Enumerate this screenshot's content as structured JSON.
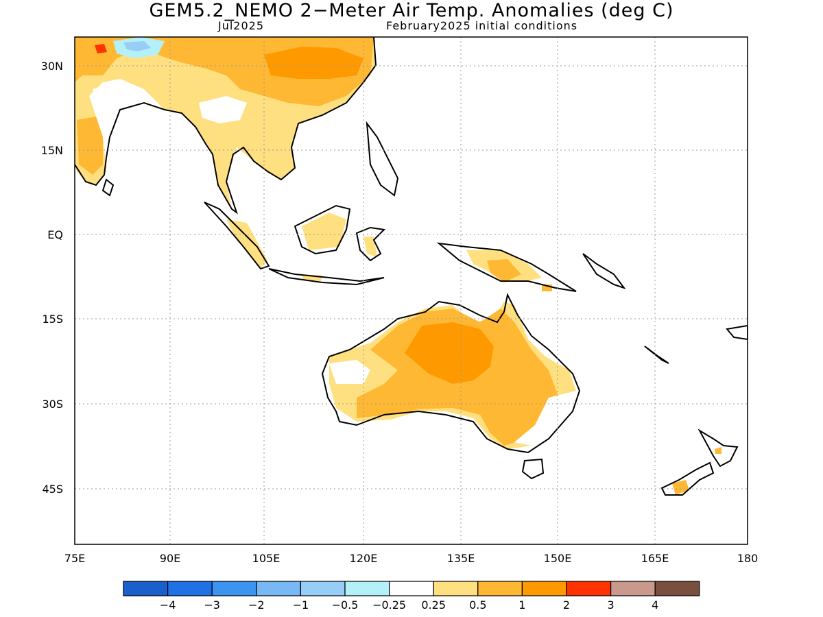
{
  "title": "GEM5.2_NEMO 2−Meter Air Temp. Anomalies (deg C)",
  "subtitle_left": "Jul2025",
  "subtitle_right": "February2025 initial conditions",
  "lat_labels": [
    "30N",
    "15N",
    "EQ",
    "15S",
    "30S",
    "45S"
  ],
  "lon_labels": [
    "75E",
    "90E",
    "105E",
    "120E",
    "135E",
    "150E",
    "165E",
    "180"
  ],
  "colorbar": {
    "colors": [
      "#1a5fcc",
      "#2070e6",
      "#3c94f0",
      "#78b8f5",
      "#96cef8",
      "#b4f0f8",
      "#ffffff",
      "#ffe080",
      "#ffb833",
      "#ff9900",
      "#ff3300",
      "#c8998c",
      "#7a4f3f"
    ],
    "labels": [
      "−4",
      "−3",
      "−2",
      "−1",
      "−0.5",
      "−0.25",
      "0.25",
      "0.5",
      "1",
      "2",
      "3",
      "4"
    ]
  },
  "palette": {
    "light": "#ffe080",
    "medium": "#ffb833",
    "strong": "#ff9900",
    "red": "#ff3300",
    "coolLight": "#b4f0f8",
    "cool": "#96cef8"
  }
}
